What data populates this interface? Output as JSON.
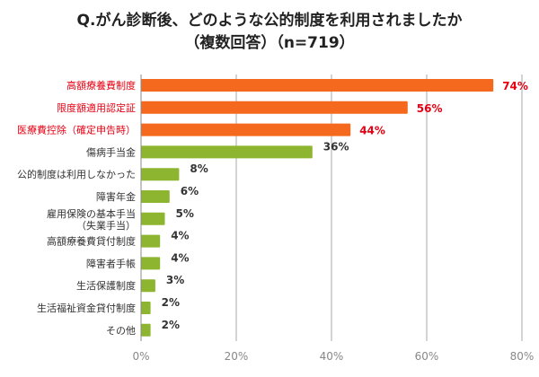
{
  "chart_data": {
    "type": "bar",
    "orientation": "horizontal",
    "title": "Q.がん診断後、どのような公的制度を利用されましたか",
    "subtitle": "（複数回答）（n=719）",
    "categories": [
      "高額療養費制度",
      "限度額適用認定証",
      "医療費控除（確定申告時）",
      "傷病手当金",
      "公的制度は利用しなかった",
      "障害年金",
      "雇用保険の基本手当\n（失業手当）",
      "高額療養費貸付制度",
      "障害者手帳",
      "生活保護制度",
      "生活福祉資金貸付制度",
      "その他"
    ],
    "values": [
      74,
      56,
      44,
      36,
      8,
      6,
      5,
      4,
      4,
      3,
      2,
      2
    ],
    "value_labels": [
      "74%",
      "56%",
      "44%",
      "36%",
      "8%",
      "6%",
      "5%",
      "4%",
      "4%",
      "3%",
      "2%",
      "2%"
    ],
    "highlighted": [
      true,
      true,
      true,
      false,
      false,
      false,
      false,
      false,
      false,
      false,
      false,
      false
    ],
    "xlim": [
      0,
      80
    ],
    "x_ticks": [
      "0%",
      "20%",
      "40%",
      "60%",
      "80%"
    ],
    "grid": true,
    "colors": {
      "highlight": "#f4691e",
      "normal": "#8db52f",
      "highlight_label": "#e60012",
      "label": "#333333",
      "grid": "#aaaaaa",
      "tick": "#888888"
    }
  }
}
